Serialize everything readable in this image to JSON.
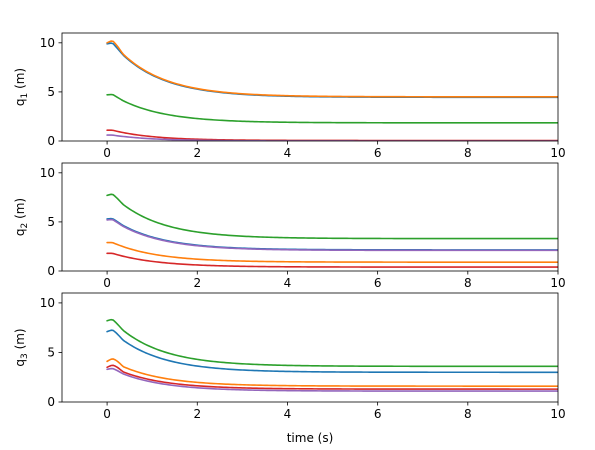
{
  "chart_data": [
    {
      "type": "line",
      "ylabel": "q_1 (m)",
      "ylabel_base": "q",
      "ylabel_sub": "1",
      "ylabel_unit": " (m)",
      "xlabel": "",
      "xlim": [
        -1,
        10
      ],
      "ylim": [
        0,
        11
      ],
      "xticks": [
        0,
        2,
        4,
        6,
        8,
        10
      ],
      "yticks": [
        0,
        5,
        10
      ],
      "grid": false,
      "series": [
        {
          "color": "#1f77b4",
          "initial": 9.9,
          "final": 4.45,
          "bump": 0.1,
          "tau": 1.0
        },
        {
          "color": "#ff7f0e",
          "initial": 10.0,
          "final": 4.5,
          "bump": 0.25,
          "tau": 1.0
        },
        {
          "color": "#2ca02c",
          "initial": 4.7,
          "final": 1.85,
          "bump": 0.05,
          "tau": 1.0
        },
        {
          "color": "#d62728",
          "initial": 1.1,
          "final": 0.05,
          "bump": 0.0,
          "tau": 0.9
        },
        {
          "color": "#9467bd",
          "initial": 0.6,
          "final": 0.0,
          "bump": 0.0,
          "tau": 0.9
        }
      ]
    },
    {
      "type": "line",
      "ylabel": "q_2 (m)",
      "ylabel_base": "q",
      "ylabel_sub": "2",
      "ylabel_unit": " (m)",
      "xlabel": "",
      "xlim": [
        -1,
        10
      ],
      "ylim": [
        0,
        11
      ],
      "xticks": [
        0,
        2,
        4,
        6,
        8,
        10
      ],
      "yticks": [
        0,
        5,
        10
      ],
      "grid": false,
      "series": [
        {
          "color": "#2ca02c",
          "initial": 7.7,
          "final": 3.3,
          "bump": 0.15,
          "tau": 1.0
        },
        {
          "color": "#1f77b4",
          "initial": 5.3,
          "final": 2.15,
          "bump": 0.05,
          "tau": 1.0
        },
        {
          "color": "#9467bd",
          "initial": 5.2,
          "final": 2.1,
          "bump": 0.05,
          "tau": 1.0
        },
        {
          "color": "#ff7f0e",
          "initial": 2.9,
          "final": 0.9,
          "bump": 0.0,
          "tau": 1.0
        },
        {
          "color": "#d62728",
          "initial": 1.8,
          "final": 0.4,
          "bump": 0.0,
          "tau": 1.0
        }
      ]
    },
    {
      "type": "line",
      "ylabel": "q_3 (m)",
      "ylabel_base": "q",
      "ylabel_sub": "3",
      "ylabel_unit": " (m)",
      "xlabel": "time (s)",
      "xlim": [
        -1,
        10
      ],
      "ylim": [
        0,
        11
      ],
      "xticks": [
        0,
        2,
        4,
        6,
        8,
        10
      ],
      "yticks": [
        0,
        5,
        10
      ],
      "grid": false,
      "series": [
        {
          "color": "#2ca02c",
          "initial": 8.2,
          "final": 3.6,
          "bump": 0.15,
          "tau": 1.0
        },
        {
          "color": "#1f77b4",
          "initial": 7.1,
          "final": 3.0,
          "bump": 0.2,
          "tau": 1.0
        },
        {
          "color": "#ff7f0e",
          "initial": 4.1,
          "final": 1.6,
          "bump": 0.3,
          "tau": 1.0
        },
        {
          "color": "#d62728",
          "initial": 3.5,
          "final": 1.3,
          "bump": 0.25,
          "tau": 1.0
        },
        {
          "color": "#9467bd",
          "initial": 3.3,
          "final": 1.1,
          "bump": 0.1,
          "tau": 1.0
        }
      ]
    }
  ]
}
